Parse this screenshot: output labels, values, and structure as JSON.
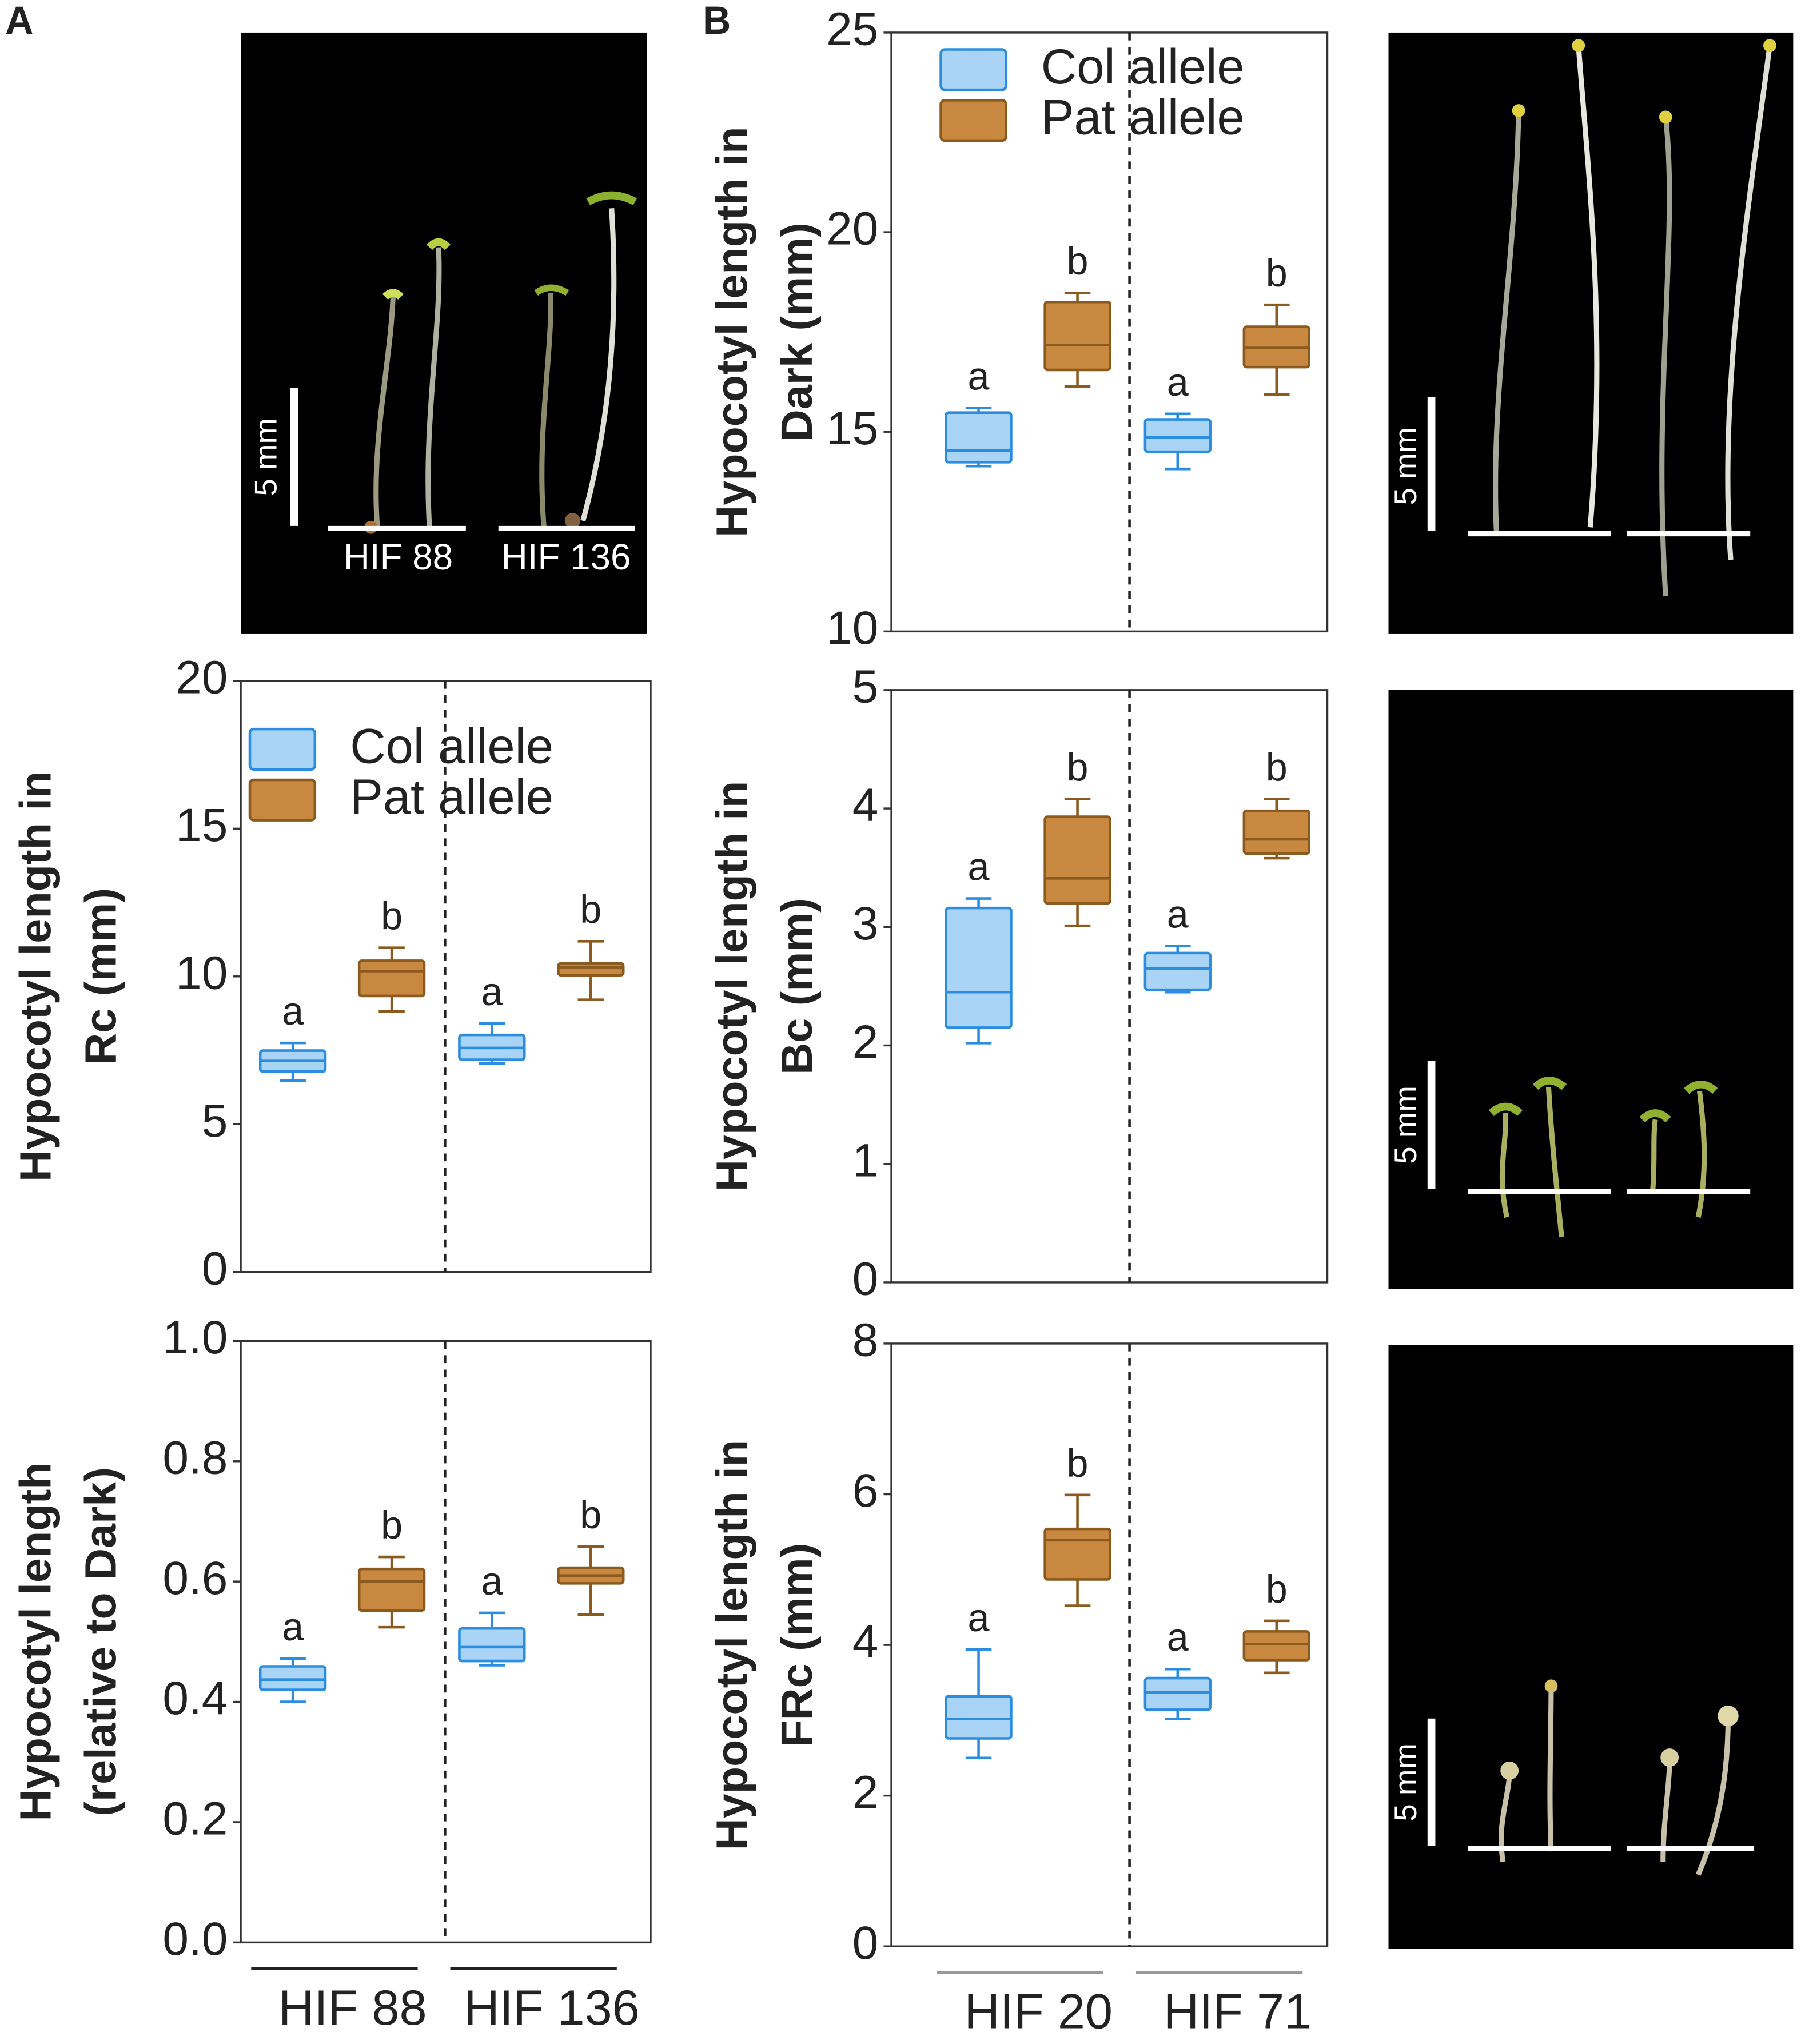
{
  "panels": [
    "A",
    "B"
  ],
  "photos": [
    {
      "scale": "5 mm",
      "labels": [
        "HIF 88",
        "HIF 136"
      ]
    },
    {
      "scale": "5 mm"
    },
    {
      "scale": "5 mm"
    },
    {
      "scale": "5 mm"
    }
  ],
  "chart_data": [
    {
      "type": "box",
      "ylabel": [
        "Hypocotyl length in",
        "Rc (mm)"
      ],
      "ylim": [
        0,
        20
      ],
      "yticks": [
        0,
        5,
        10,
        15,
        20
      ],
      "legend": "upper left",
      "series": [
        {
          "name": "Col allele",
          "color": "#a9d4f5",
          "edgecolor": "#2b8de0",
          "letters": [
            "a",
            "a"
          ],
          "values": [
            {
              "low": 6.48,
              "q1": 6.78,
              "median": 7.14,
              "q3": 7.49,
              "high": 7.75
            },
            {
              "low": 7.05,
              "q1": 7.18,
              "median": 7.58,
              "q3": 8.02,
              "high": 8.41
            }
          ]
        },
        {
          "name": "Pat allele",
          "color": "#c8883f",
          "edgecolor": "#8b5a1f",
          "letters": [
            "b",
            "b"
          ],
          "values": [
            {
              "low": 8.81,
              "q1": 9.34,
              "median": 10.18,
              "q3": 10.53,
              "high": 10.97
            },
            {
              "low": 9.21,
              "q1": 10.04,
              "median": 10.31,
              "q3": 10.44,
              "high": 11.19
            }
          ]
        }
      ]
    },
    {
      "type": "box",
      "ylabel": [
        "Hypocotyl length",
        "(relative to Dark)"
      ],
      "ylim": [
        0,
        1
      ],
      "yticks": [
        {
          "value": 0,
          "label": "0.0"
        },
        0.2,
        0.4,
        0.6,
        0.8,
        {
          "value": 1,
          "label": "1.0"
        }
      ],
      "categories": [
        "HIF 88",
        "HIF 136"
      ],
      "series": [
        {
          "color": "#a9d4f5",
          "edgecolor": "#2b8de0",
          "letters": [
            "a",
            "a"
          ],
          "values": [
            {
              "low": 0.4,
              "q1": 0.42,
              "median": 0.437,
              "q3": 0.459,
              "high": 0.472
            },
            {
              "low": 0.461,
              "q1": 0.468,
              "median": 0.491,
              "q3": 0.522,
              "high": 0.548
            }
          ]
        },
        {
          "color": "#c8883f",
          "edgecolor": "#8b5a1f",
          "letters": [
            "b",
            "b"
          ],
          "values": [
            {
              "low": 0.524,
              "q1": 0.552,
              "median": 0.6,
              "q3": 0.621,
              "high": 0.641
            },
            {
              "low": 0.545,
              "q1": 0.597,
              "median": 0.61,
              "q3": 0.623,
              "high": 0.658
            }
          ]
        }
      ]
    },
    {
      "type": "box",
      "ylabel": [
        "Hypocotyl length in",
        "Dark (mm)"
      ],
      "ylim": [
        10,
        25
      ],
      "yticks": [
        10,
        15,
        20,
        25
      ],
      "legend": "upper left",
      "series": [
        {
          "name": "Col allele",
          "color": "#a9d4f5",
          "edgecolor": "#2b8de0",
          "letters": [
            "a",
            "a"
          ],
          "values": [
            {
              "low": 14.14,
              "q1": 14.24,
              "median": 14.53,
              "q3": 15.48,
              "high": 15.6
            },
            {
              "low": 14.07,
              "q1": 14.5,
              "median": 14.86,
              "q3": 15.31,
              "high": 15.45
            }
          ]
        },
        {
          "name": "Pat allele",
          "color": "#c8883f",
          "edgecolor": "#8b5a1f",
          "letters": [
            "b",
            "b"
          ],
          "values": [
            {
              "low": 16.13,
              "q1": 16.55,
              "median": 17.17,
              "q3": 18.25,
              "high": 18.48
            },
            {
              "low": 15.93,
              "q1": 16.62,
              "median": 17.1,
              "q3": 17.63,
              "high": 18.18
            }
          ]
        }
      ]
    },
    {
      "type": "box",
      "ylabel": [
        "Hypocotyl length in",
        "Bc (mm)"
      ],
      "ylim": [
        0,
        5
      ],
      "yticks": [
        0,
        1,
        2,
        3,
        4,
        5
      ],
      "series": [
        {
          "color": "#a9d4f5",
          "edgecolor": "#2b8de0",
          "letters": [
            "a",
            "a"
          ],
          "values": [
            {
              "low": 2.02,
              "q1": 2.15,
              "median": 2.45,
              "q3": 3.16,
              "high": 3.24
            },
            {
              "low": 2.45,
              "q1": 2.47,
              "median": 2.65,
              "q3": 2.78,
              "high": 2.84
            }
          ]
        },
        {
          "color": "#c8883f",
          "edgecolor": "#8b5a1f",
          "letters": [
            "b",
            "b"
          ],
          "values": [
            {
              "low": 3.01,
              "q1": 3.2,
              "median": 3.41,
              "q3": 3.93,
              "high": 4.08
            },
            {
              "low": 3.58,
              "q1": 3.62,
              "median": 3.74,
              "q3": 3.98,
              "high": 4.08
            }
          ]
        }
      ]
    },
    {
      "type": "box",
      "ylabel": [
        "Hypocotyl length in",
        "FRc (mm)"
      ],
      "ylim": [
        0,
        8
      ],
      "yticks": [
        0,
        2,
        4,
        6,
        8
      ],
      "categories": [
        "HIF 20",
        "HIF 71"
      ],
      "series": [
        {
          "color": "#a9d4f5",
          "edgecolor": "#2b8de0",
          "letters": [
            "a",
            "a"
          ],
          "values": [
            {
              "low": 2.5,
              "q1": 2.76,
              "median": 3.02,
              "q3": 3.32,
              "high": 3.94
            },
            {
              "low": 3.02,
              "q1": 3.14,
              "median": 3.37,
              "q3": 3.56,
              "high": 3.68
            }
          ]
        },
        {
          "color": "#c8883f",
          "edgecolor": "#8b5a1f",
          "letters": [
            "b",
            "b"
          ],
          "values": [
            {
              "low": 4.52,
              "q1": 4.87,
              "median": 5.39,
              "q3": 5.54,
              "high": 5.99
            },
            {
              "low": 3.63,
              "q1": 3.8,
              "median": 4.01,
              "q3": 4.18,
              "high": 4.32
            }
          ]
        }
      ]
    }
  ]
}
